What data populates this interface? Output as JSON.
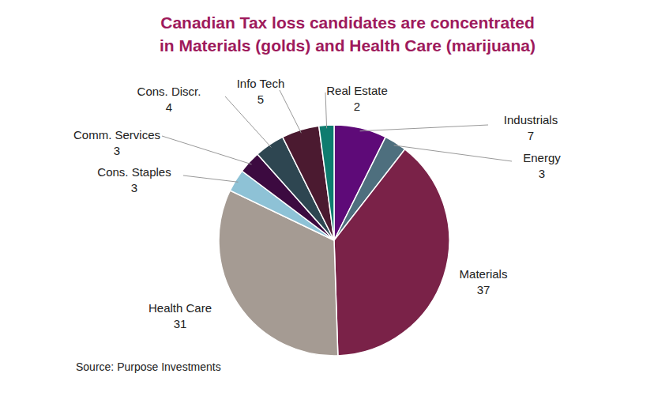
{
  "chart_data": {
    "type": "pie",
    "title": "Canadian Tax loss candidates are concentrated\nin Materials (golds) and Health Care (marijuana)",
    "categories": [
      "Industrials",
      "Energy",
      "Materials",
      "Health Care",
      "Cons. Staples",
      "Comm. Services",
      "Cons. Discr.",
      "Info Tech",
      "Real Estate"
    ],
    "values": [
      7,
      3,
      37,
      31,
      3,
      3,
      4,
      5,
      2
    ],
    "colors": [
      "#5E0A78",
      "#4E6F7E",
      "#7A2248",
      "#A59B93",
      "#8EC2D6",
      "#3C0A40",
      "#2E4651",
      "#4B1A30",
      "#0E7C6F"
    ],
    "data_labels": true,
    "source": "Source: Purpose Investments"
  }
}
